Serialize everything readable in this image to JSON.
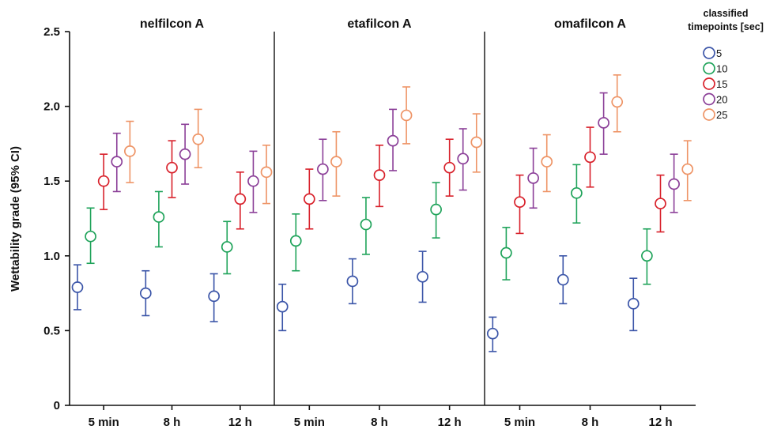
{
  "chart_data": {
    "type": "scatter",
    "ylabel": "Wettability grade (95% CI)",
    "ylim": [
      0,
      2.5
    ],
    "yticks": [
      "0",
      "0.5",
      "1.0",
      "1.5",
      "2.0",
      "2.5"
    ],
    "categories": [
      "5 min",
      "8 h",
      "12 h"
    ],
    "grid": false,
    "legend": {
      "title_line1": "classified",
      "title_line2": "timepoints [sec]",
      "placement": "top-right",
      "items": [
        {
          "label": "5",
          "color": "#3b55a8"
        },
        {
          "label": "10",
          "color": "#1fa35a"
        },
        {
          "label": "15",
          "color": "#d8202a"
        },
        {
          "label": "20",
          "color": "#8b3f98"
        },
        {
          "label": "25",
          "color": "#ee9466"
        }
      ]
    },
    "panels": [
      {
        "title": "nelfilcon A",
        "series": [
          {
            "name": "5",
            "values": [
              [
                0.79,
                0.64,
                0.94
              ],
              [
                0.75,
                0.6,
                0.9
              ],
              [
                0.73,
                0.56,
                0.88
              ]
            ]
          },
          {
            "name": "10",
            "values": [
              [
                1.13,
                0.95,
                1.32
              ],
              [
                1.26,
                1.06,
                1.43
              ],
              [
                1.06,
                0.88,
                1.23
              ]
            ]
          },
          {
            "name": "15",
            "values": [
              [
                1.5,
                1.31,
                1.68
              ],
              [
                1.59,
                1.39,
                1.77
              ],
              [
                1.38,
                1.18,
                1.56
              ]
            ]
          },
          {
            "name": "20",
            "values": [
              [
                1.63,
                1.43,
                1.82
              ],
              [
                1.68,
                1.48,
                1.88
              ],
              [
                1.5,
                1.29,
                1.7
              ]
            ]
          },
          {
            "name": "25",
            "values": [
              [
                1.7,
                1.49,
                1.9
              ],
              [
                1.78,
                1.59,
                1.98
              ],
              [
                1.56,
                1.35,
                1.74
              ]
            ]
          }
        ]
      },
      {
        "title": "etafilcon A",
        "series": [
          {
            "name": "5",
            "values": [
              [
                0.66,
                0.5,
                0.81
              ],
              [
                0.83,
                0.68,
                0.98
              ],
              [
                0.86,
                0.69,
                1.03
              ]
            ]
          },
          {
            "name": "10",
            "values": [
              [
                1.1,
                0.9,
                1.28
              ],
              [
                1.21,
                1.01,
                1.39
              ],
              [
                1.31,
                1.12,
                1.49
              ]
            ]
          },
          {
            "name": "15",
            "values": [
              [
                1.38,
                1.18,
                1.58
              ],
              [
                1.54,
                1.33,
                1.74
              ],
              [
                1.59,
                1.4,
                1.78
              ]
            ]
          },
          {
            "name": "20",
            "values": [
              [
                1.58,
                1.37,
                1.78
              ],
              [
                1.77,
                1.57,
                1.98
              ],
              [
                1.65,
                1.44,
                1.85
              ]
            ]
          },
          {
            "name": "25",
            "values": [
              [
                1.63,
                1.4,
                1.83
              ],
              [
                1.94,
                1.75,
                2.13
              ],
              [
                1.76,
                1.56,
                1.95
              ]
            ]
          }
        ]
      },
      {
        "title": "omafilcon A",
        "series": [
          {
            "name": "5",
            "values": [
              [
                0.48,
                0.36,
                0.59
              ],
              [
                0.84,
                0.68,
                1.0
              ],
              [
                0.68,
                0.5,
                0.85
              ]
            ]
          },
          {
            "name": "10",
            "values": [
              [
                1.02,
                0.84,
                1.19
              ],
              [
                1.42,
                1.22,
                1.61
              ],
              [
                1.0,
                0.81,
                1.18
              ]
            ]
          },
          {
            "name": "15",
            "values": [
              [
                1.36,
                1.15,
                1.54
              ],
              [
                1.66,
                1.46,
                1.86
              ],
              [
                1.35,
                1.16,
                1.54
              ]
            ]
          },
          {
            "name": "20",
            "values": [
              [
                1.52,
                1.32,
                1.72
              ],
              [
                1.89,
                1.68,
                2.09
              ],
              [
                1.48,
                1.29,
                1.68
              ]
            ]
          },
          {
            "name": "25",
            "values": [
              [
                1.63,
                1.43,
                1.81
              ],
              [
                2.03,
                1.83,
                2.21
              ],
              [
                1.58,
                1.37,
                1.77
              ]
            ]
          }
        ]
      }
    ]
  }
}
